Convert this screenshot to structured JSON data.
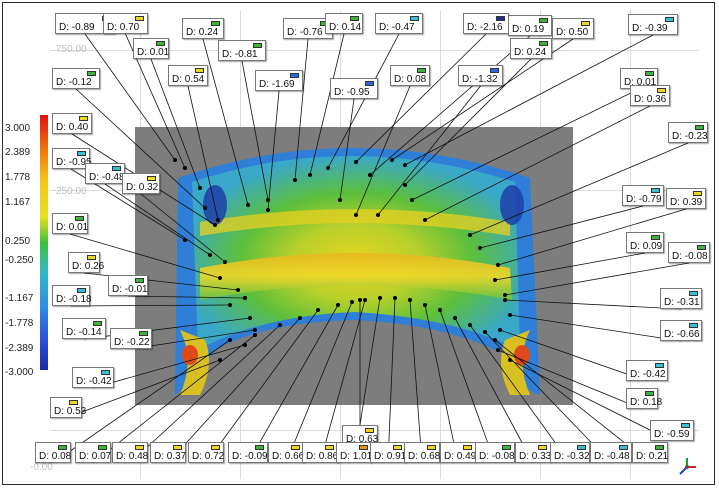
{
  "colors": {
    "background_plate": "#7d7d7d",
    "leader_line": "#111111",
    "green": "#3cb43c",
    "yellow": "#ecd81c",
    "cyan": "#36c0d4",
    "blue": "#2a6ad8",
    "darkblue": "#1a2f8e",
    "orange": "#e8901a"
  },
  "scale": {
    "top_value": "750.00",
    "mid_value": "250.00",
    "bottom_value": "-0.00"
  },
  "legend": {
    "ticks": [
      "3.000",
      "2.389",
      "1.778",
      "1.167",
      "0.250",
      "-0.250",
      "-1.167",
      "-1.778",
      "-2.389",
      "-3.000"
    ]
  },
  "labels": [
    {
      "text": "D: -0.89",
      "color": "cyan"
    },
    {
      "text": "D: 0.70",
      "color": "yellow"
    },
    {
      "text": "D: 0.01",
      "color": "green"
    },
    {
      "text": "D: 0.24",
      "color": "green"
    },
    {
      "text": "D: -0.81",
      "color": "green"
    },
    {
      "text": "D: -0.76",
      "color": "green"
    },
    {
      "text": "D: 0.14",
      "color": "green"
    },
    {
      "text": "D: -0.47",
      "color": "cyan"
    },
    {
      "text": "D: -2.16",
      "color": "darkblue"
    },
    {
      "text": "D: 0.19",
      "color": "green"
    },
    {
      "text": "D: 0.50",
      "color": "yellow"
    },
    {
      "text": "D: -0.39",
      "color": "cyan"
    },
    {
      "text": "D: 0.54",
      "color": "yellow"
    },
    {
      "text": "D: -1.69",
      "color": "blue"
    },
    {
      "text": "D: -0.95",
      "color": "blue"
    },
    {
      "text": "D: 0.08",
      "color": "green"
    },
    {
      "text": "D: -1.32",
      "color": "blue"
    },
    {
      "text": "D: 0.24",
      "color": "green"
    },
    {
      "text": "D: 0.01",
      "color": "green"
    },
    {
      "text": "D: 0.36",
      "color": "yellow"
    },
    {
      "text": "D: -0.12",
      "color": "green"
    },
    {
      "text": "D: 0.40",
      "color": "yellow"
    },
    {
      "text": "D: -0.23",
      "color": "green"
    },
    {
      "text": "D: -0.95",
      "color": "cyan"
    },
    {
      "text": "D: -0.48",
      "color": "cyan"
    },
    {
      "text": "D: 0.32",
      "color": "yellow"
    },
    {
      "text": "D: -0.79",
      "color": "cyan"
    },
    {
      "text": "D: 0.39",
      "color": "yellow"
    },
    {
      "text": "D: 0.01",
      "color": "green"
    },
    {
      "text": "D: 0.26",
      "color": "yellow"
    },
    {
      "text": "D: 0.09",
      "color": "green"
    },
    {
      "text": "D: -0.08",
      "color": "green"
    },
    {
      "text": "D: -0.01",
      "color": "green"
    },
    {
      "text": "D: -0.18",
      "color": "cyan"
    },
    {
      "text": "D: -0.31",
      "color": "cyan"
    },
    {
      "text": "D: -0.14",
      "color": "green"
    },
    {
      "text": "D: -0.22",
      "color": "green"
    },
    {
      "text": "D: -0.66",
      "color": "cyan"
    },
    {
      "text": "D: -0.42",
      "color": "cyan"
    },
    {
      "text": "D: -0.42",
      "color": "cyan"
    },
    {
      "text": "D: 0.53",
      "color": "yellow"
    },
    {
      "text": "D: 0.18",
      "color": "green"
    },
    {
      "text": "D: -0.59",
      "color": "cyan"
    },
    {
      "text": "D: 0.63",
      "color": "yellow"
    },
    {
      "text": "D: 0.08",
      "color": "green"
    },
    {
      "text": "D: 0.07",
      "color": "green"
    },
    {
      "text": "D: 0.48",
      "color": "yellow"
    },
    {
      "text": "D: 0.37",
      "color": "yellow"
    },
    {
      "text": "D: 0.72",
      "color": "yellow"
    },
    {
      "text": "D: -0.09",
      "color": "green"
    },
    {
      "text": "D: 0.66",
      "color": "yellow"
    },
    {
      "text": "D: 0.86",
      "color": "yellow"
    },
    {
      "text": "D: 1.01",
      "color": "orange"
    },
    {
      "text": "D: 0.91",
      "color": "yellow"
    },
    {
      "text": "D: 0.68",
      "color": "yellow"
    },
    {
      "text": "D: 0.49",
      "color": "yellow"
    },
    {
      "text": "D: -0.08",
      "color": "green"
    },
    {
      "text": "D: 0.33",
      "color": "yellow"
    },
    {
      "text": "D: -0.32",
      "color": "cyan"
    },
    {
      "text": "D: -0.48",
      "color": "cyan"
    },
    {
      "text": "D: 0.21",
      "color": "green"
    }
  ]
}
